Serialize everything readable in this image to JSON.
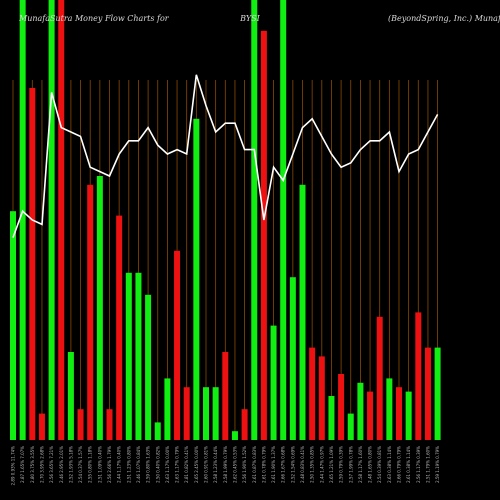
{
  "chart_data": {
    "type": "bar",
    "title_left": "MunafaSutra Money Flow  Charts for",
    "title_center": "BYSI",
    "title_right": "(BeyondSpring, Inc.) MunafaSutra.com",
    "ylim": [
      0,
      100
    ],
    "colors": {
      "up": "#11ee11",
      "down": "#ee1111",
      "line": "#ffffff",
      "grid": "#8a4a00",
      "background": "#000000"
    },
    "categories": [
      "2.89 0.93% 11.74%",
      "2.87 1.65% 7.07%",
      "2.80 3.75% 3.55%",
      "2.70 3.95% 2.68%",
      "2.56 3.65% 7.21%",
      "2.46 2.95% 2.01%",
      "2.52 1.93% 5.18%",
      "2.54 0.37% 1.57%",
      "2.55 0.80% 1.18%",
      "2.51 1.09% 0.40%",
      "2.56 2.66% 1.79%",
      "2.44 1.17% 0.40%",
      "2.51 1.23% 0.80%",
      "2.46 1.07% 0.84%",
      "2.59 0.80% 1.63%",
      "2.50 0.40% 0.82%",
      "2.63 1.17% 0.00%",
      "2.63 1.17% 0.79%",
      "2.81 0.82% 0.41%",
      "2.65 2.45% 0.00%",
      "2.60 0.91% 0.81%",
      "2.58 1.23% 0.44%",
      "2.58 1.99% 0.79%",
      "2.62 0.45% 0.53%",
      "2.56 1.90% 1.52%",
      "2.61 0.87% 0.83%",
      "2.61 0.78% 0.79%",
      "2.61 1.90% 1.37%",
      "2.66 1.67% 0.68%",
      "2.52 1.54% 0.69%",
      "2.48 0.83% 0.41%",
      "2.50 1.35% 0.85%",
      "2.44 1.47% 0.97%",
      "2.65 1.21% 1.09%",
      "2.59 0.79% 0.39%",
      "2.57 1.99% 0.78%",
      "2.58 1.17% 1.60%",
      "2.48 1.65% 0.80%",
      "2.54 0.39% 0.81%",
      "2.63 0.38% 1.14%",
      "2.66 0.79% 0.79%",
      "2.61 0.38% 1.14%",
      "2.56 1.17% 0.39%",
      "2.51 1.79% 1.60%",
      "2.59 1.19% 0.79%"
    ],
    "values": [
      52,
      100,
      80,
      6,
      100,
      100,
      20,
      7,
      58,
      60,
      7,
      51,
      38,
      38,
      33,
      4,
      14,
      43,
      12,
      73,
      12,
      12,
      20,
      2,
      7,
      100,
      93,
      26,
      100,
      37,
      58,
      21,
      19,
      10,
      15,
      6,
      13,
      11,
      28,
      14,
      12,
      11,
      29,
      21,
      21
    ],
    "directions": [
      "up",
      "up",
      "down",
      "down",
      "up",
      "down",
      "up",
      "down",
      "down",
      "up",
      "down",
      "down",
      "up",
      "up",
      "up",
      "up",
      "up",
      "down",
      "down",
      "up",
      "up",
      "up",
      "down",
      "up",
      "down",
      "up",
      "down",
      "up",
      "up",
      "up",
      "up",
      "down",
      "down",
      "up",
      "down",
      "up",
      "up",
      "down",
      "down",
      "up",
      "down",
      "up",
      "down",
      "down",
      "up"
    ],
    "line": [
      46,
      52,
      50,
      49,
      79,
      71,
      70,
      69,
      62,
      61,
      60,
      65,
      68,
      68,
      71,
      67,
      65,
      66,
      65,
      83,
      76,
      70,
      72,
      72,
      66,
      66,
      50,
      62,
      59,
      65,
      71,
      73,
      69,
      65,
      62,
      63,
      66,
      68,
      68,
      70,
      61,
      65,
      66,
      70,
      74
    ]
  }
}
